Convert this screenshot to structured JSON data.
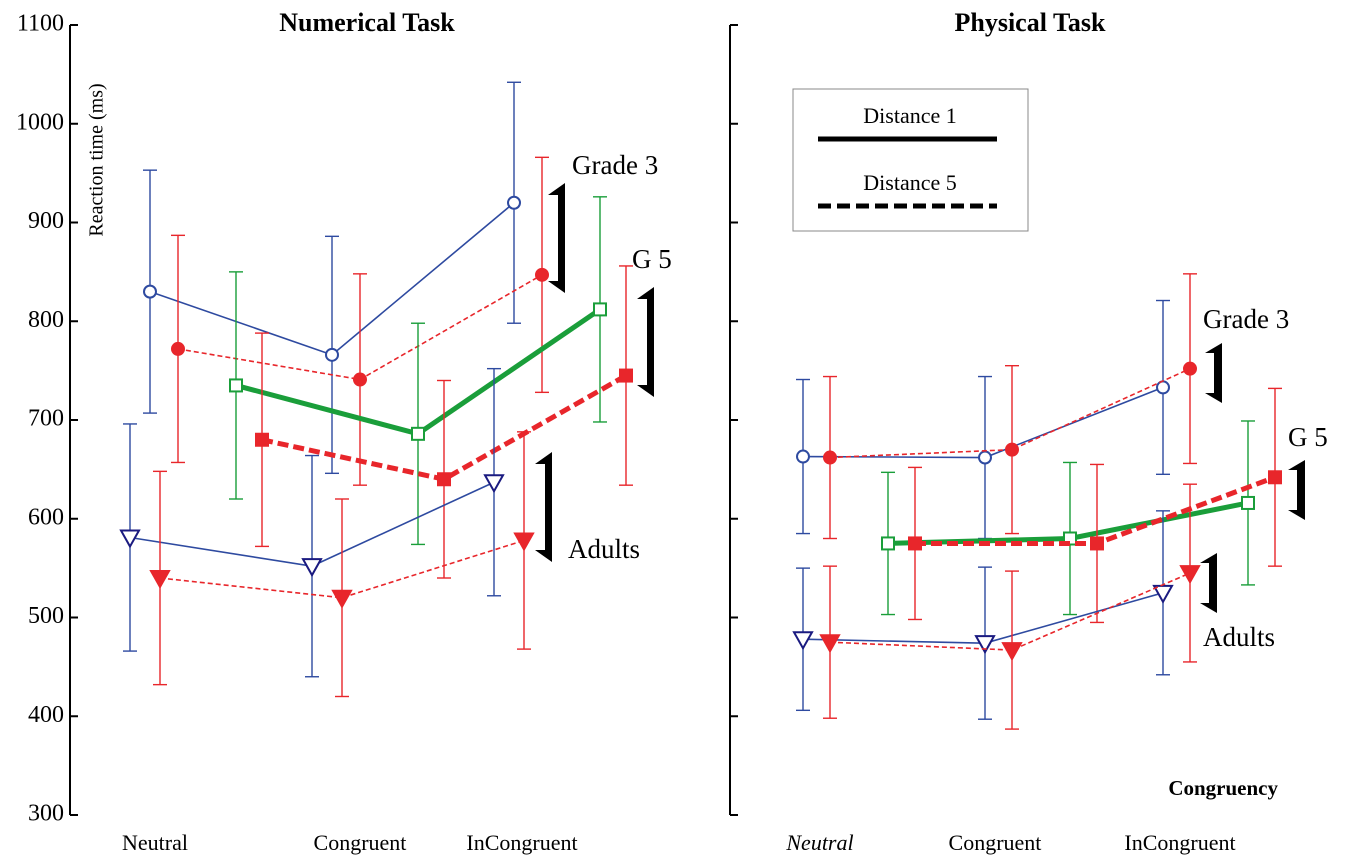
{
  "chart_data": [
    {
      "type": "line",
      "title": "Numerical Task",
      "ylabel": "Reaction time (ms)",
      "categories": [
        "Neutral",
        "Congruent",
        "InCongruent"
      ],
      "ylim": [
        300,
        1100
      ],
      "yticks": [
        300,
        400,
        500,
        600,
        700,
        800,
        900,
        1000,
        1100
      ],
      "show_ytick_labels": true,
      "annotations": [
        "Grade 3",
        "G 5",
        "Adults"
      ],
      "series": [
        {
          "color": "#2e4aa0",
          "marker": "circle-open",
          "line": "solid",
          "values": [
            830,
            766,
            920
          ],
          "errors": [
            123,
            120,
            122
          ]
        },
        {
          "color": "#e8262b",
          "marker": "circle",
          "line": "dashed",
          "values": [
            772,
            741,
            847
          ],
          "errors": [
            115,
            107,
            119
          ]
        },
        {
          "color": "#1a9e3a",
          "marker": "square-open",
          "line": "solid-thick",
          "values": [
            735,
            686,
            812
          ],
          "errors": [
            115,
            112,
            114
          ]
        },
        {
          "color": "#e8262b",
          "marker": "square",
          "line": "dashed-thick",
          "values": [
            680,
            640,
            745
          ],
          "errors": [
            108,
            100,
            111
          ]
        },
        {
          "color": "#2e4aa0",
          "marker": "triangle-open",
          "line": "solid",
          "values": [
            581,
            552,
            637
          ],
          "errors": [
            115,
            112,
            115
          ]
        },
        {
          "color": "#e8262b",
          "marker": "triangle",
          "line": "dashed",
          "values": [
            540,
            520,
            578
          ],
          "errors": [
            108,
            100,
            110
          ]
        }
      ]
    },
    {
      "type": "line",
      "title": "Physical Task",
      "xlabel": "Congruency",
      "categories": [
        "Neutral",
        "Congruent",
        "InCongruent"
      ],
      "ylim": [
        300,
        1100
      ],
      "yticks": [
        300,
        400,
        500,
        600,
        700,
        800,
        900,
        1000,
        1100
      ],
      "show_ytick_labels": false,
      "legend": [
        "Distance 1",
        "Distance 5"
      ],
      "annotations": [
        "Grade 3",
        "G 5",
        "Adults"
      ],
      "series": [
        {
          "color": "#2e4aa0",
          "marker": "circle-open",
          "line": "solid",
          "values": [
            663,
            662,
            733
          ],
          "errors": [
            78,
            82,
            88
          ]
        },
        {
          "color": "#e8262b",
          "marker": "circle",
          "line": "dashed",
          "values": [
            662,
            670,
            752
          ],
          "errors": [
            82,
            85,
            96
          ]
        },
        {
          "color": "#1a9e3a",
          "marker": "square-open",
          "line": "solid-thick",
          "values": [
            575,
            580,
            616
          ],
          "errors": [
            72,
            77,
            83
          ]
        },
        {
          "color": "#e8262b",
          "marker": "square",
          "line": "dashed-thick",
          "values": [
            575,
            575,
            642
          ],
          "errors": [
            77,
            80,
            90
          ]
        },
        {
          "color": "#2e4aa0",
          "marker": "triangle-open",
          "line": "solid",
          "values": [
            478,
            474,
            525
          ],
          "errors": [
            72,
            77,
            83
          ]
        },
        {
          "color": "#e8262b",
          "marker": "triangle",
          "line": "dashed",
          "values": [
            475,
            467,
            545
          ],
          "errors": [
            77,
            80,
            90
          ]
        }
      ]
    }
  ]
}
